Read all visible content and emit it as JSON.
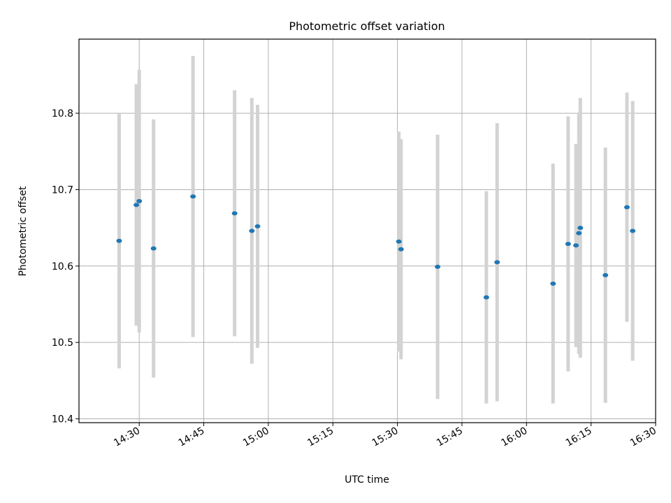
{
  "chart_data": {
    "type": "scatter",
    "title": "Photometric offset variation",
    "xlabel": "UTC time",
    "ylabel": "Photometric offset",
    "xlim": [
      "14:16",
      "16:30"
    ],
    "ylim": [
      10.395,
      10.897
    ],
    "grid": true,
    "x_ticks": [
      "14:30",
      "14:45",
      "15:00",
      "15:15",
      "15:30",
      "15:45",
      "16:00",
      "16:15",
      "16:30"
    ],
    "y_ticks": [
      10.4,
      10.5,
      10.6,
      10.7,
      10.8
    ],
    "y_tick_labels": [
      "10.4",
      "10.5",
      "10.6",
      "10.7",
      "10.8"
    ],
    "colors": {
      "points": "#1f77b4",
      "error_bars": "#d3d3d3",
      "grid": "#b0b0b0"
    },
    "series": [
      {
        "points": [
          {
            "x": "14:25:20",
            "y": 10.633,
            "yerr": 0.167
          },
          {
            "x": "14:29:20",
            "y": 10.68,
            "yerr": 0.158
          },
          {
            "x": "14:30:00",
            "y": 10.685,
            "yerr": 0.172
          },
          {
            "x": "14:33:20",
            "y": 10.623,
            "yerr": 0.169
          },
          {
            "x": "14:42:30",
            "y": 10.691,
            "yerr": 0.184
          },
          {
            "x": "14:52:10",
            "y": 10.669,
            "yerr": 0.161
          },
          {
            "x": "14:56:10",
            "y": 10.646,
            "yerr": 0.174
          },
          {
            "x": "14:57:30",
            "y": 10.652,
            "yerr": 0.159
          },
          {
            "x": "15:30:20",
            "y": 10.632,
            "yerr": 0.144
          },
          {
            "x": "15:30:50",
            "y": 10.622,
            "yerr": 0.144
          },
          {
            "x": "15:39:20",
            "y": 10.599,
            "yerr": 0.173
          },
          {
            "x": "15:50:40",
            "y": 10.559,
            "yerr": 0.139
          },
          {
            "x": "15:53:10",
            "y": 10.605,
            "yerr": 0.182
          },
          {
            "x": "16:06:10",
            "y": 10.577,
            "yerr": 0.157
          },
          {
            "x": "16:09:40",
            "y": 10.629,
            "yerr": 0.167
          },
          {
            "x": "16:11:30",
            "y": 10.627,
            "yerr": 0.133
          },
          {
            "x": "16:12:10",
            "y": 10.643,
            "yerr": 0.158
          },
          {
            "x": "16:12:30",
            "y": 10.65,
            "yerr": 0.17
          },
          {
            "x": "16:18:20",
            "y": 10.588,
            "yerr": 0.167
          },
          {
            "x": "16:23:20",
            "y": 10.677,
            "yerr": 0.15
          },
          {
            "x": "16:24:40",
            "y": 10.646,
            "yerr": 0.17
          }
        ]
      }
    ]
  }
}
